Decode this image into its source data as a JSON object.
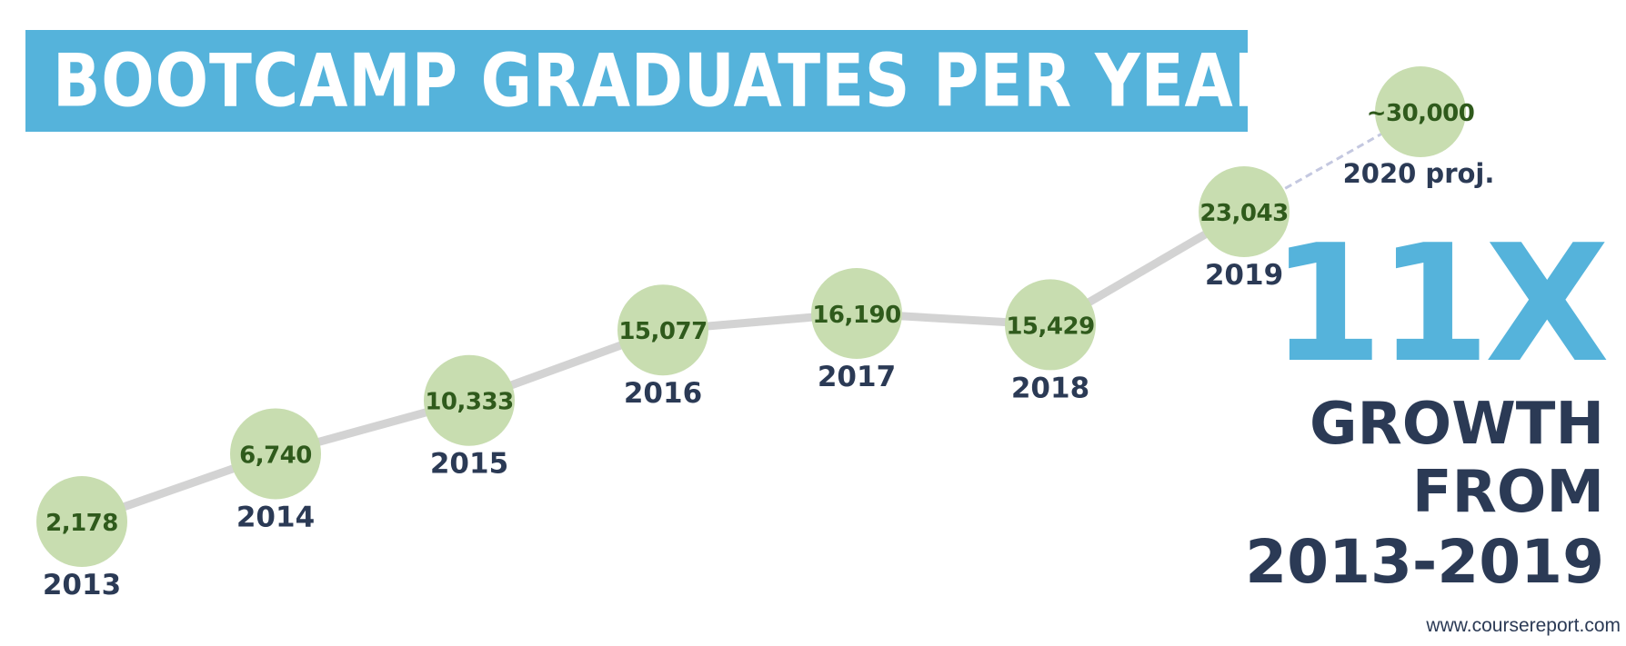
{
  "title": "BOOTCAMP GRADUATES PER YEAR",
  "headline": {
    "multiplier": "11X",
    "line1": "GROWTH",
    "line2": "FROM",
    "line3": "2013-2019"
  },
  "source": "www.coursereport.com",
  "colors": {
    "banner": "#55b3db",
    "bubble": "#c8ddb0",
    "bubble_text": "#2f5a1c",
    "year_text": "#2b3a55",
    "line": "#d3d3d3",
    "projection_line": "#c4c8e0"
  },
  "chart_data": {
    "type": "line",
    "title": "BOOTCAMP GRADUATES PER YEAR",
    "points": [
      {
        "year": "2013",
        "value": 2178,
        "label": "2,178"
      },
      {
        "year": "2014",
        "value": 6740,
        "label": "6,740"
      },
      {
        "year": "2015",
        "value": 10333,
        "label": "10,333"
      },
      {
        "year": "2016",
        "value": 15077,
        "label": "15,077"
      },
      {
        "year": "2017",
        "value": 16190,
        "label": "16,190"
      },
      {
        "year": "2018",
        "value": 15429,
        "label": "15,429"
      },
      {
        "year": "2019",
        "value": 23043,
        "label": "23,043"
      }
    ],
    "projection": {
      "year": "2020 proj.",
      "value": 30000,
      "label": "~30,000"
    },
    "xlabel": "",
    "ylabel": "",
    "grid": false,
    "legend": "none"
  }
}
